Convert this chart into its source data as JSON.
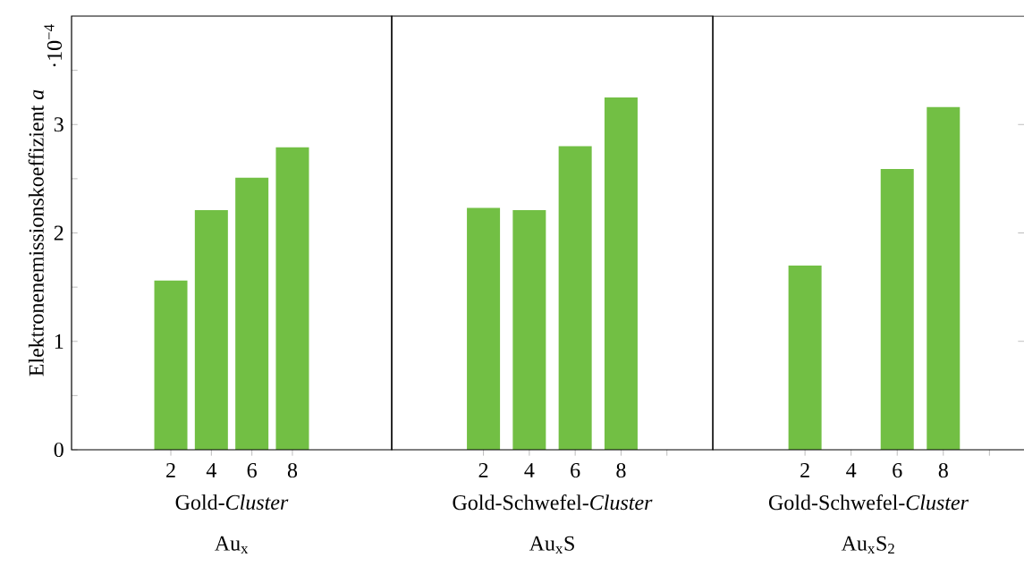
{
  "chart_data": [
    {
      "type": "bar",
      "x": [
        2,
        4,
        6,
        8
      ],
      "values": [
        1.56,
        2.21,
        2.51,
        2.79
      ],
      "color": "#72bf44",
      "xlim": [
        -2.9,
        12.9
      ],
      "ylim": [
        0,
        4
      ],
      "xticks": [
        2,
        4,
        6,
        8
      ],
      "yticks": [
        0,
        {
          "value": 0.5,
          "label": null
        },
        1,
        {
          "value": 1.5,
          "label": null
        },
        2,
        {
          "value": 2.5,
          "label": null
        },
        3,
        {
          "value": 3.5,
          "label": null
        }
      ],
      "ylabel": "Elektronenemissionskoeffizient *a*",
      "xlabel": "Gold-*Cluster*",
      "annotations": [
        "·10$^{−4}$",
        "Au$_{x}$"
      ]
    },
    {
      "type": "bar",
      "x": [
        2,
        4,
        6,
        8
      ],
      "values": [
        2.23,
        2.21,
        2.8,
        3.25
      ],
      "color": "#72bf44",
      "xlim": [
        -2,
        12
      ],
      "ylim": [
        0,
        4
      ],
      "xticks": [
        2,
        4,
        6,
        8,
        {
          "value": 10,
          "label": null
        }
      ],
      "tick_labels": "x",
      "xlabel": "Gold-Schwefel-*Cluster*",
      "annotations": [
        "Au$_{x}$S"
      ]
    },
    {
      "type": "bar",
      "x": [
        2,
        4,
        6,
        8
      ],
      "values": [
        1.7,
        null,
        2.59,
        3.16
      ],
      "color": "#72bf44",
      "xlim": [
        -2,
        11.5
      ],
      "ylim": [
        0,
        4
      ],
      "xticks": [
        2,
        4,
        6,
        8,
        {
          "value": 10,
          "label": null
        }
      ],
      "yticks": [
        1,
        2,
        3
      ],
      "tick_labels": "x",
      "xlabel": "Gold-Schwefel-*Cluster*",
      "annotations": [
        "Au$_{x}$S$_{2}$"
      ]
    }
  ]
}
